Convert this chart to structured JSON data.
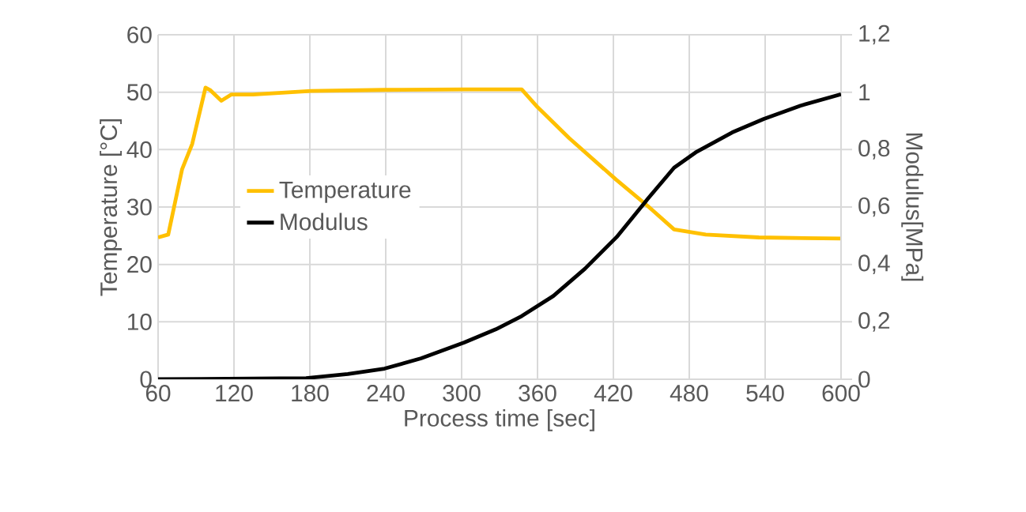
{
  "chart_data": {
    "type": "line",
    "xlabel": "Process time [sec]",
    "ylabel": "Temperature [°C]",
    "y2label": "Modulus[MPa]",
    "xlim": [
      60,
      600
    ],
    "xticks": [
      60,
      120,
      180,
      240,
      300,
      360,
      420,
      480,
      540,
      600
    ],
    "ylim": [
      0,
      60
    ],
    "yticks": [
      0,
      10,
      20,
      30,
      40,
      50,
      60
    ],
    "y2lim": [
      0,
      1.2
    ],
    "y2ticks": [
      0,
      {
        "value": 0.2,
        "label": "0,2"
      },
      {
        "value": 0.4,
        "label": "0,4"
      },
      {
        "value": 0.6,
        "label": "0,6"
      },
      {
        "value": 0.8,
        "label": "0,8"
      },
      1,
      {
        "value": 1.2,
        "label": "1,2"
      }
    ],
    "grid": true,
    "legend": "left",
    "series": [
      {
        "name": "Temperature",
        "color": "#ffc000",
        "axis": "y",
        "x": [
          60,
          68,
          79,
          87,
          97.5,
          101,
          110,
          118,
          135,
          181,
          239,
          302,
          347.5,
          360,
          385,
          422,
          447,
          468,
          493,
          535,
          600
        ],
        "values": [
          24.7,
          25.2,
          36.6,
          41,
          50.8,
          50.4,
          48.5,
          49.6,
          49.6,
          50.2,
          50.4,
          50.5,
          50.5,
          47.4,
          42,
          34.8,
          30.2,
          26.1,
          25.2,
          24.7,
          24.5
        ]
      },
      {
        "name": "Modulus",
        "color": "#000000",
        "axis": "y2",
        "x": [
          60,
          177,
          210,
          239,
          268,
          302,
          327,
          347.5,
          372.5,
          397.5,
          422.5,
          447.5,
          468,
          485,
          514,
          539,
          568,
          600
        ],
        "values": [
          0,
          0.004,
          0.018,
          0.037,
          0.073,
          0.128,
          0.174,
          0.22,
          0.29,
          0.385,
          0.495,
          0.63,
          0.737,
          0.79,
          0.86,
          0.907,
          0.953,
          0.993
        ]
      }
    ]
  }
}
